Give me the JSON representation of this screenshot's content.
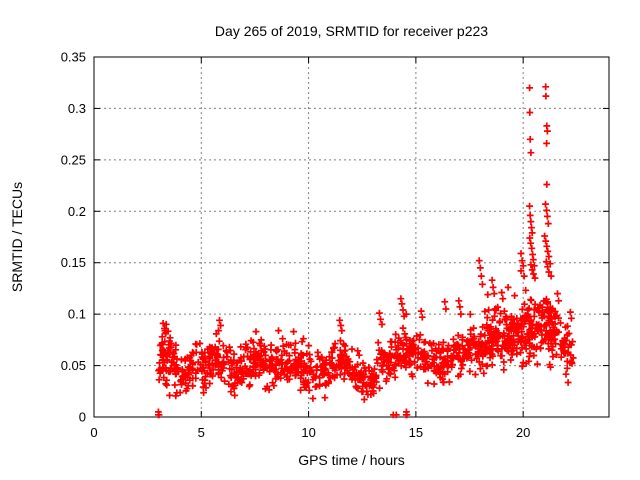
{
  "title": "Day 265 of 2019, SRMTID for receiver p223",
  "xlabel": "GPS time / hours",
  "ylabel": "SRMTID / TECUs",
  "chart_data": {
    "type": "scatter",
    "title": "Day 265 of 2019, SRMTID for receiver p223",
    "xlabel": "GPS time / hours",
    "ylabel": "SRMTID / TECUs",
    "marker": "plus",
    "marker_size": 7,
    "color": "#ff0000",
    "grid": true,
    "grid_color": "#808080",
    "xlim": [
      0,
      24
    ],
    "ylim": [
      0,
      0.35
    ],
    "xticks": [
      0,
      5,
      10,
      15,
      20
    ],
    "xtick_labels": [
      "0",
      "5",
      "10",
      "15",
      "20"
    ],
    "yticks": [
      0,
      0.05,
      0.1,
      0.15,
      0.2,
      0.25,
      0.3,
      0.35
    ],
    "ytick_labels": [
      "0",
      "0.05",
      "0.1",
      "0.15",
      "0.2",
      "0.25",
      "0.3",
      "0.35"
    ],
    "data_x_range": [
      3.0,
      22.35
    ],
    "seed": 42,
    "band_mean": [
      [
        3.0,
        0.053
      ],
      [
        3.3,
        0.063
      ],
      [
        3.6,
        0.052
      ],
      [
        4.0,
        0.038
      ],
      [
        4.4,
        0.043
      ],
      [
        4.8,
        0.048
      ],
      [
        5.2,
        0.053
      ],
      [
        5.7,
        0.056
      ],
      [
        6.2,
        0.048
      ],
      [
        6.7,
        0.041
      ],
      [
        7.2,
        0.051
      ],
      [
        7.7,
        0.056
      ],
      [
        8.2,
        0.049
      ],
      [
        8.7,
        0.055
      ],
      [
        9.2,
        0.051
      ],
      [
        9.7,
        0.051
      ],
      [
        10.2,
        0.044
      ],
      [
        10.7,
        0.043
      ],
      [
        11.2,
        0.052
      ],
      [
        11.6,
        0.056
      ],
      [
        12.0,
        0.046
      ],
      [
        12.5,
        0.038
      ],
      [
        13.0,
        0.034
      ],
      [
        13.4,
        0.054
      ],
      [
        13.8,
        0.052
      ],
      [
        14.3,
        0.061
      ],
      [
        14.7,
        0.064
      ],
      [
        15.2,
        0.058
      ],
      [
        15.7,
        0.053
      ],
      [
        16.2,
        0.051
      ],
      [
        16.7,
        0.056
      ],
      [
        17.2,
        0.062
      ],
      [
        17.7,
        0.068
      ],
      [
        18.2,
        0.073
      ],
      [
        18.7,
        0.079
      ],
      [
        19.2,
        0.078
      ],
      [
        19.7,
        0.079
      ],
      [
        20.2,
        0.083
      ],
      [
        20.7,
        0.089
      ],
      [
        21.2,
        0.086
      ],
      [
        21.7,
        0.073
      ],
      [
        22.1,
        0.062
      ],
      [
        22.35,
        0.056
      ]
    ],
    "spread": 0.021,
    "spread_overrides": [
      [
        3.0,
        3.6,
        0.028
      ],
      [
        12.3,
        13.2,
        0.016
      ],
      [
        17.5,
        19.7,
        0.027
      ],
      [
        19.7,
        21.5,
        0.03
      ],
      [
        21.5,
        22.35,
        0.025
      ]
    ],
    "density": 62,
    "density_overrides": [
      [
        3.0,
        3.6,
        95
      ],
      [
        12.8,
        13.4,
        48
      ],
      [
        18.0,
        21.5,
        88
      ],
      [
        21.5,
        22.1,
        70
      ],
      [
        22.1,
        22.35,
        40
      ]
    ],
    "outliers": [
      [
        3.22,
        0.091
      ],
      [
        3.28,
        0.086
      ],
      [
        3.33,
        0.081
      ],
      [
        3.18,
        0.078
      ],
      [
        5.85,
        0.094
      ],
      [
        5.9,
        0.089
      ],
      [
        5.8,
        0.084
      ],
      [
        7.55,
        0.083
      ],
      [
        8.6,
        0.084
      ],
      [
        9.3,
        0.083
      ],
      [
        11.45,
        0.094
      ],
      [
        11.5,
        0.089
      ],
      [
        11.55,
        0.084
      ],
      [
        13.3,
        0.101
      ],
      [
        13.35,
        0.095
      ],
      [
        13.42,
        0.09
      ],
      [
        14.3,
        0.115
      ],
      [
        14.35,
        0.11
      ],
      [
        14.4,
        0.104
      ],
      [
        14.45,
        0.098
      ],
      [
        14.55,
        0.1
      ],
      [
        15.25,
        0.103
      ],
      [
        15.3,
        0.097
      ],
      [
        16.35,
        0.112
      ],
      [
        16.4,
        0.105
      ],
      [
        17.0,
        0.113
      ],
      [
        17.05,
        0.107
      ],
      [
        17.1,
        0.1
      ],
      [
        17.95,
        0.152
      ],
      [
        18.0,
        0.145
      ],
      [
        18.05,
        0.137
      ],
      [
        18.1,
        0.129
      ],
      [
        18.35,
        0.119
      ],
      [
        18.55,
        0.133
      ],
      [
        18.6,
        0.126
      ],
      [
        18.65,
        0.12
      ],
      [
        19.0,
        0.121
      ],
      [
        19.05,
        0.115
      ],
      [
        19.3,
        0.126
      ],
      [
        19.6,
        0.118
      ],
      [
        19.9,
        0.159
      ],
      [
        19.95,
        0.152
      ],
      [
        20.0,
        0.147
      ],
      [
        19.9,
        0.142
      ],
      [
        20.05,
        0.137
      ],
      [
        20.3,
        0.32
      ],
      [
        20.31,
        0.296
      ],
      [
        20.33,
        0.27
      ],
      [
        20.36,
        0.257
      ],
      [
        20.3,
        0.205
      ],
      [
        20.33,
        0.196
      ],
      [
        20.36,
        0.19
      ],
      [
        20.39,
        0.184
      ],
      [
        20.42,
        0.179
      ],
      [
        20.31,
        0.174
      ],
      [
        20.35,
        0.169
      ],
      [
        20.4,
        0.164
      ],
      [
        20.44,
        0.158
      ],
      [
        20.47,
        0.153
      ],
      [
        20.36,
        0.148
      ],
      [
        20.42,
        0.143
      ],
      [
        20.48,
        0.139
      ],
      [
        20.52,
        0.147
      ],
      [
        20.55,
        0.135
      ],
      [
        21.05,
        0.321
      ],
      [
        21.06,
        0.312
      ],
      [
        21.1,
        0.283
      ],
      [
        21.13,
        0.278
      ],
      [
        21.09,
        0.266
      ],
      [
        21.1,
        0.226
      ],
      [
        21.04,
        0.207
      ],
      [
        21.09,
        0.201
      ],
      [
        21.13,
        0.195
      ],
      [
        21.17,
        0.188
      ],
      [
        21.0,
        0.176
      ],
      [
        21.05,
        0.171
      ],
      [
        21.1,
        0.166
      ],
      [
        21.15,
        0.161
      ],
      [
        21.2,
        0.156
      ],
      [
        21.08,
        0.151
      ],
      [
        21.14,
        0.146
      ],
      [
        21.2,
        0.141
      ],
      [
        21.26,
        0.149
      ],
      [
        21.3,
        0.137
      ],
      [
        21.6,
        0.12
      ],
      [
        21.65,
        0.113
      ],
      [
        22.2,
        0.102
      ],
      [
        22.25,
        0.096
      ]
    ],
    "zero_points": [
      [
        3.0,
        0.002
      ],
      [
        3.03,
        0.002
      ],
      [
        3.0,
        0.005
      ],
      [
        13.95,
        0.002
      ],
      [
        14.09,
        0.002
      ],
      [
        14.55,
        0.002
      ],
      [
        14.58,
        0.002
      ],
      [
        14.56,
        0.005
      ]
    ]
  }
}
